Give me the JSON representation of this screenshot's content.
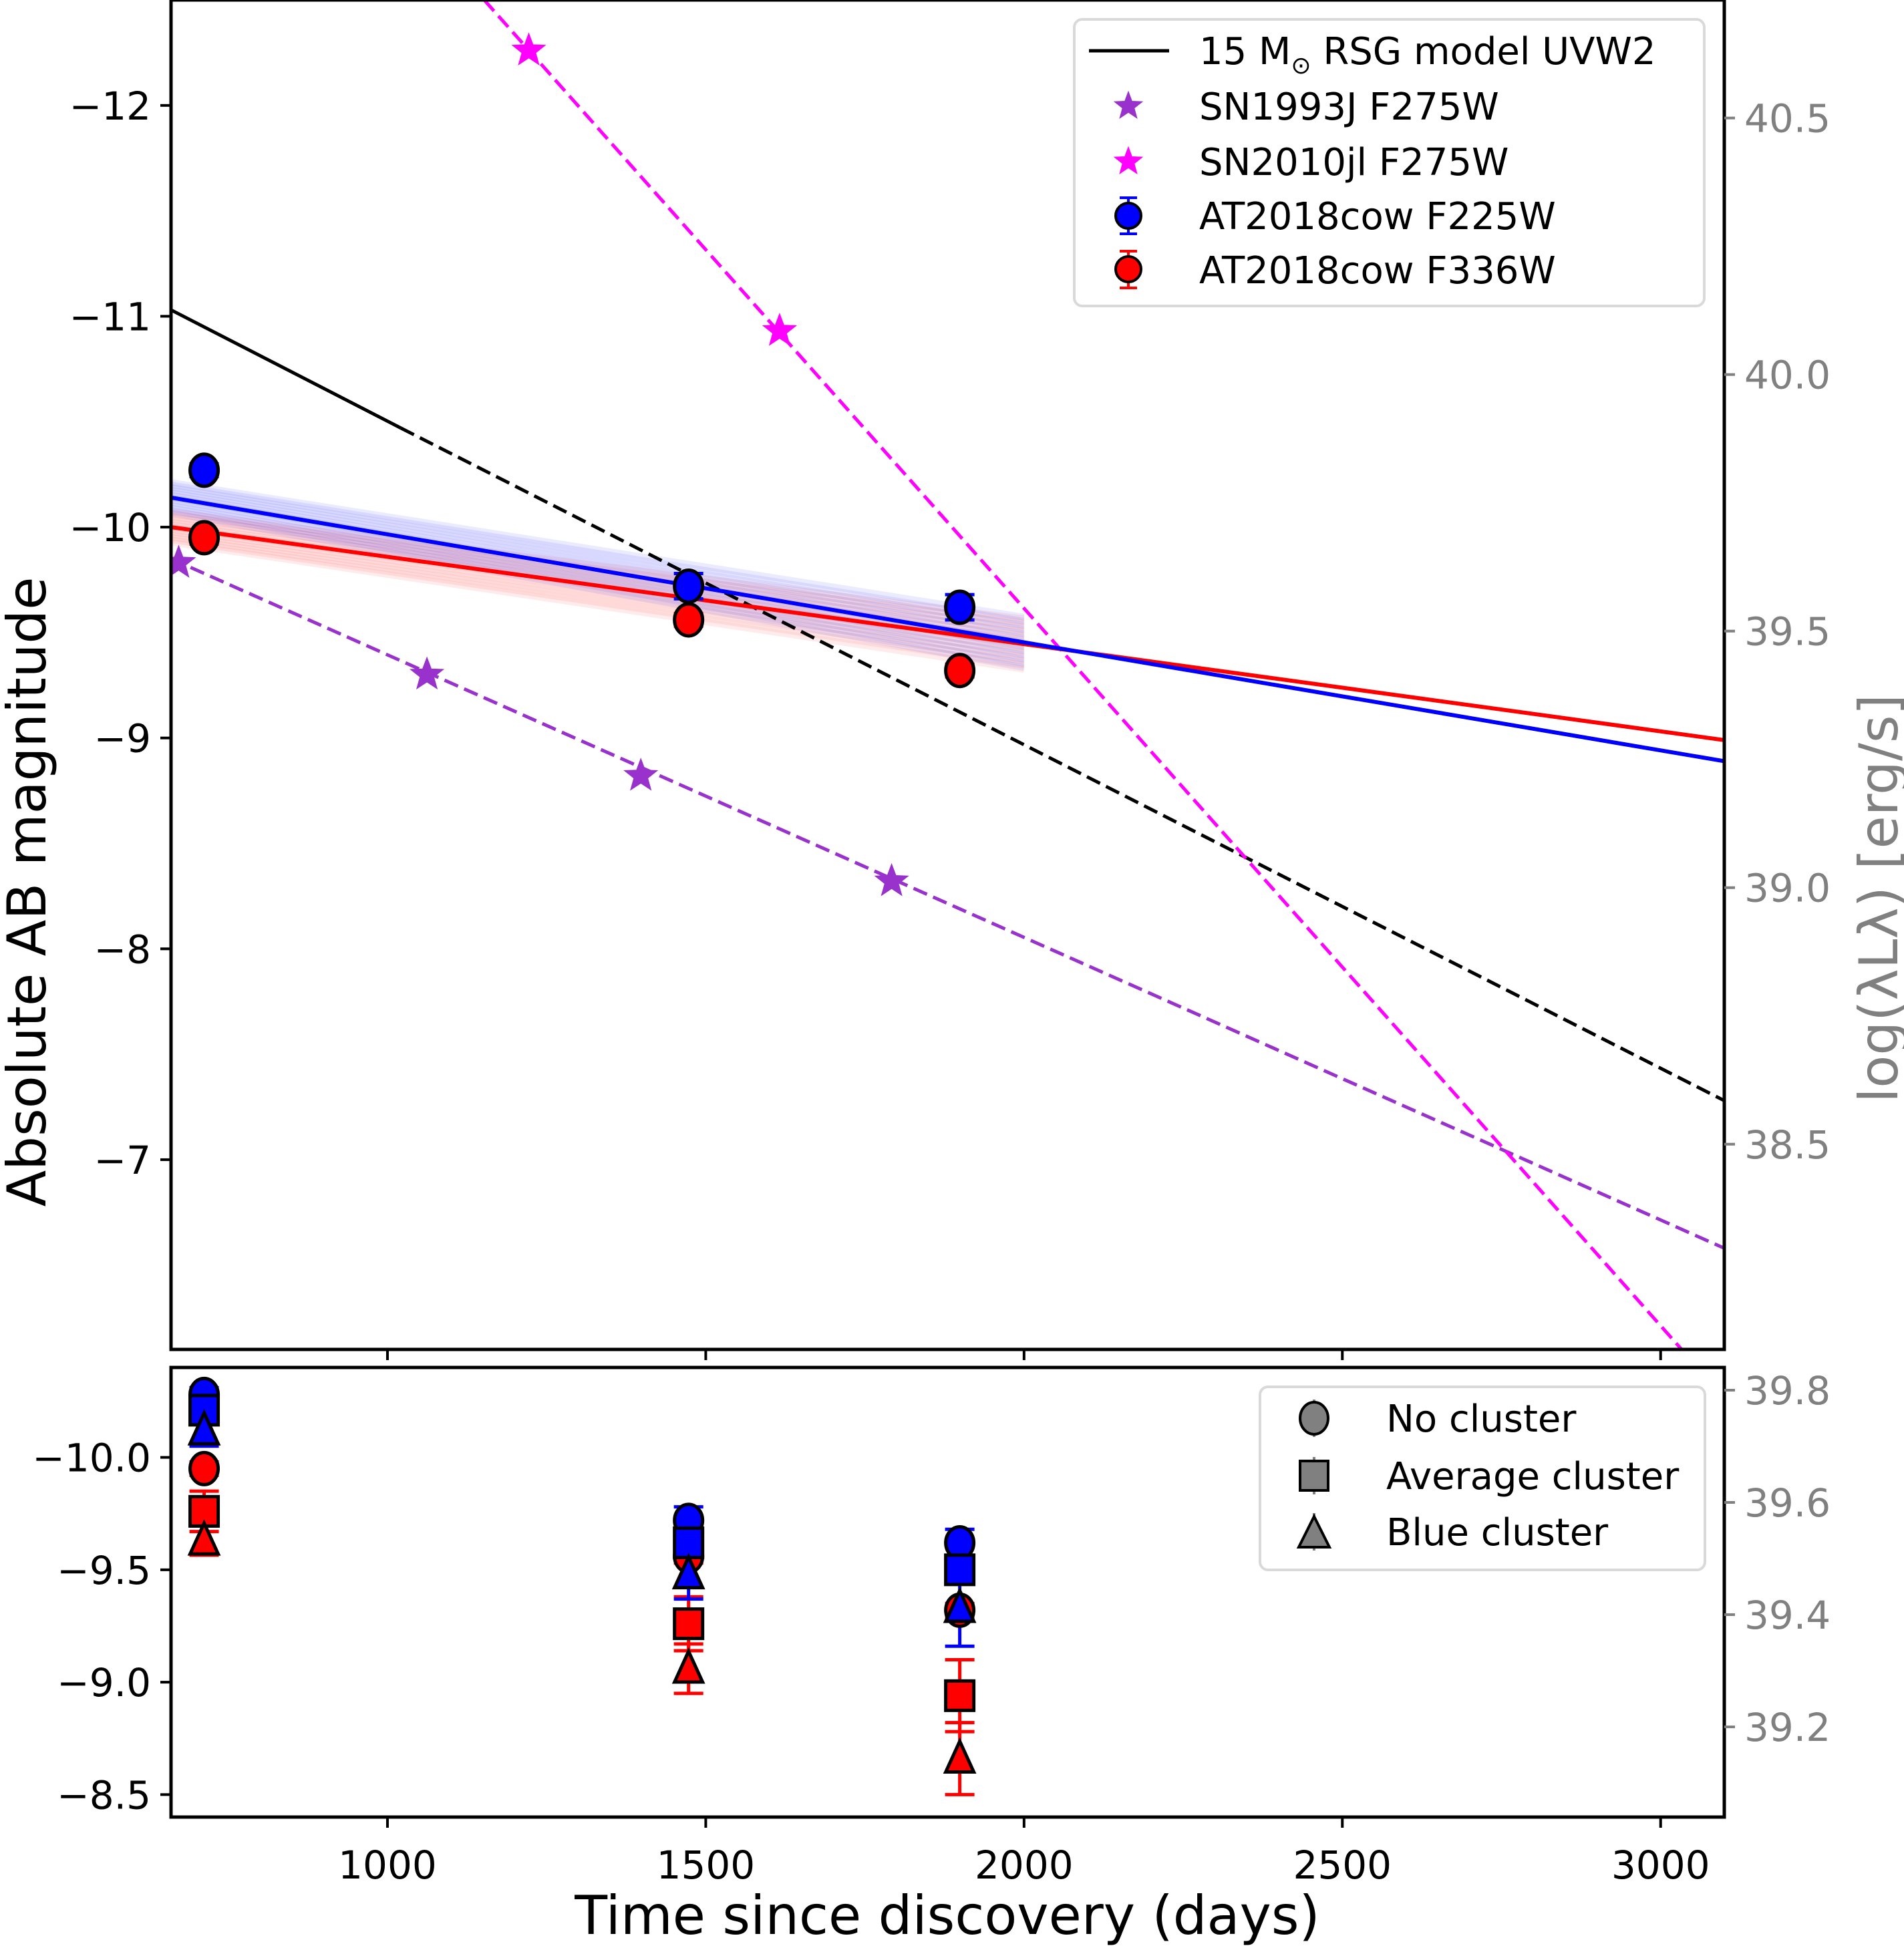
{
  "chart_data": [
    {
      "panel": "top",
      "type": "scatter",
      "xlabel": "Time since discovery (days)",
      "ylabel": "Absolute AB magnitude",
      "ylabel_right": "log(λLλ) [erg/s]",
      "xlim": [
        660,
        3100
      ],
      "ylim": [
        -12.5,
        -6.1
      ],
      "y_inverted": true,
      "ylim_right": [
        40.73,
        38.1
      ],
      "xticks": [
        1000,
        1500,
        2000,
        2500,
        3000
      ],
      "yticks": [
        -12,
        -11,
        -10,
        -9,
        -8,
        -7
      ],
      "ytick_labels": [
        "−12",
        "−11",
        "−10",
        "−9",
        "−8",
        "−7"
      ],
      "yticks_right": [
        40.5,
        40.0,
        39.5,
        39.0,
        38.5
      ],
      "ytick_labels_right": [
        "40.5",
        "40.0",
        "39.5",
        "39.0",
        "38.5"
      ],
      "grid": false,
      "legend_position": "top-right",
      "legend": [
        {
          "label": "15 M",
          "sub": "⊙",
          "label_rest": " RSG model UVW2",
          "marker": "line",
          "color": "#000000"
        },
        {
          "label": "SN1993J F275W",
          "marker": "star",
          "color": "#9932cc"
        },
        {
          "label": "SN2010jl F275W",
          "marker": "star",
          "color": "#ff00ff"
        },
        {
          "label": "AT2018cow F225W",
          "marker": "circle-errorbar",
          "color": "#0000ff"
        },
        {
          "label": "AT2018cow F336W",
          "marker": "circle-errorbar",
          "color": "#ff0000"
        }
      ],
      "series": [
        {
          "name": "15 Msun RSG model UVW2",
          "color": "#000000",
          "segments": [
            {
              "style": "solid",
              "x": [
                660,
                1021
              ],
              "y": [
                -11.03,
                -10.47
              ]
            },
            {
              "style": "dashed",
              "x": [
                1021,
                3100
              ],
              "y": [
                -10.47,
                -7.28
              ]
            }
          ]
        },
        {
          "name": "SN1993J F275W",
          "color": "#9932cc",
          "marker": "star",
          "line_style": "dashed",
          "x": [
            672,
            1062,
            1398,
            1792
          ],
          "y": [
            -9.83,
            -9.3,
            -8.82,
            -8.32
          ],
          "line": {
            "x": [
              660,
              3100
            ],
            "y": [
              -9.85,
              -6.58
            ]
          }
        },
        {
          "name": "SN2010jl F275W",
          "color": "#ff00ff",
          "marker": "star",
          "line_style": "dashed",
          "x": [
            1222,
            1616
          ],
          "y": [
            -12.26,
            -10.93
          ],
          "line": {
            "x": [
              1152,
              3033
            ],
            "y": [
              -12.5,
              -6.1
            ]
          }
        },
        {
          "name": "AT2018cow F225W",
          "color": "#0000ff",
          "marker": "circle",
          "x": [
            712,
            1473,
            1899
          ],
          "y": [
            -10.27,
            -9.72,
            -9.62
          ],
          "yerr": [
            0.03,
            0.06,
            0.06
          ],
          "fit": {
            "x": [
              660,
              3100
            ],
            "y": [
              -10.14,
              -8.89
            ]
          },
          "fit_ensemble_xmax": 2000
        },
        {
          "name": "AT2018cow F336W",
          "color": "#ff0000",
          "marker": "circle",
          "x": [
            712,
            1473,
            1899
          ],
          "y": [
            -9.95,
            -9.56,
            -9.32
          ],
          "yerr": [
            0.03,
            0.03,
            0.03
          ],
          "fit": {
            "x": [
              660,
              3100
            ],
            "y": [
              -10.0,
              -8.99
            ]
          },
          "fit_ensemble_xmax": 2000
        }
      ]
    },
    {
      "panel": "bottom",
      "type": "scatter",
      "xlabel": "Time since discovery (days)",
      "xlim": [
        660,
        3100
      ],
      "ylim": [
        -10.4,
        -8.4
      ],
      "y_inverted": true,
      "xticks": [
        1000,
        1500,
        2000,
        2500,
        3000
      ],
      "xtick_labels": [
        "1000",
        "1500",
        "2000",
        "2500",
        "3000"
      ],
      "yticks": [
        -10.0,
        -9.5,
        -9.0,
        -8.5
      ],
      "ytick_labels": [
        "−10.0",
        "−9.5",
        "−9.0",
        "−8.5"
      ],
      "yticks_right": [
        39.8,
        39.6,
        39.4,
        39.2
      ],
      "ytick_labels_right": [
        "39.8",
        "39.6",
        "39.4",
        "39.2"
      ],
      "grid": false,
      "legend_position": "top-right",
      "legend": [
        {
          "label": "No cluster",
          "marker": "circle",
          "color": "#808080"
        },
        {
          "label": "Average cluster",
          "marker": "square",
          "color": "#808080"
        },
        {
          "label": "Blue cluster",
          "marker": "triangle",
          "color": "#808080"
        }
      ],
      "series": [
        {
          "name": "F225W No cluster",
          "color": "#0000ff",
          "marker": "circle",
          "x": [
            712,
            1473,
            1899
          ],
          "y": [
            -10.28,
            -9.72,
            -9.62
          ],
          "yerr": [
            0.03,
            0.06,
            0.06
          ]
        },
        {
          "name": "F225W Average cluster",
          "color": "#0000ff",
          "marker": "square",
          "x": [
            712,
            1473,
            1899
          ],
          "y": [
            -10.21,
            -9.62,
            -9.5
          ],
          "yerr": [
            0.06,
            0.06,
            0.06
          ]
        },
        {
          "name": "F225W Blue cluster",
          "color": "#0000ff",
          "marker": "triangle",
          "x": [
            712,
            1473,
            1899
          ],
          "y": [
            -10.12,
            -9.48,
            -9.33
          ],
          "yerr": [
            0.07,
            0.11,
            0.17
          ]
        },
        {
          "name": "F336W No cluster",
          "color": "#ff0000",
          "marker": "circle",
          "x": [
            712,
            1473,
            1899
          ],
          "y": [
            -9.95,
            -9.56,
            -9.32
          ],
          "yerr": [
            0.03,
            0.03,
            0.03
          ]
        },
        {
          "name": "F336W Average cluster",
          "color": "#ff0000",
          "marker": "square",
          "x": [
            712,
            1473,
            1899
          ],
          "y": [
            -9.76,
            -9.26,
            -8.94
          ],
          "yerr": [
            0.09,
            0.12,
            0.16
          ]
        },
        {
          "name": "F336W Blue cluster",
          "color": "#ff0000",
          "marker": "triangle",
          "x": [
            712,
            1473,
            1899
          ],
          "y": [
            -9.63,
            -9.06,
            -8.66
          ],
          "yerr": [
            0.065,
            0.11,
            0.16
          ]
        }
      ]
    }
  ]
}
